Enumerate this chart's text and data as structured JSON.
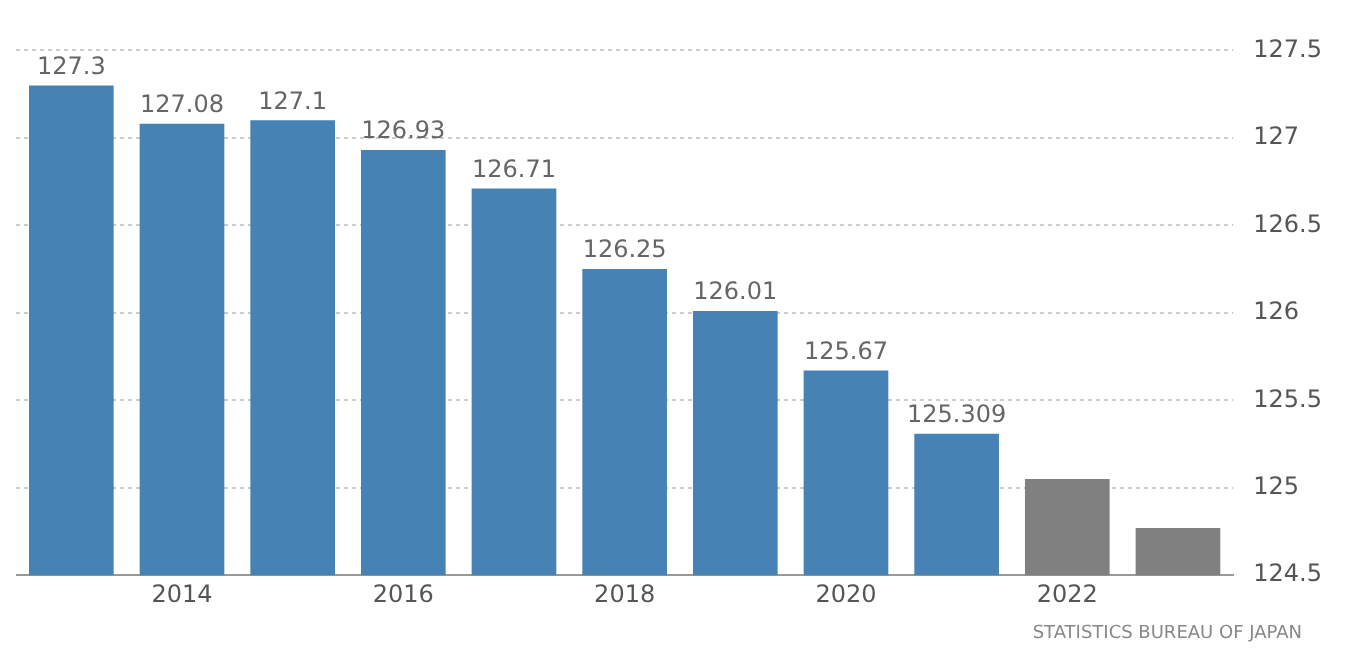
{
  "chart_data": {
    "type": "bar",
    "categories": [
      null,
      "2014",
      null,
      "2016",
      null,
      "2018",
      null,
      "2020",
      null,
      "2022",
      null
    ],
    "values": [
      127.3,
      127.08,
      127.1,
      126.93,
      126.71,
      126.25,
      126.01,
      125.67,
      125.309,
      125.05,
      124.77
    ],
    "colors": [
      "#4682b4",
      "#4682b4",
      "#4682b4",
      "#4682b4",
      "#4682b4",
      "#4682b4",
      "#4682b4",
      "#4682b4",
      "#4682b4",
      "#808080",
      "#808080"
    ],
    "value_labels": [
      "127.3",
      "127.08",
      "127.1",
      "126.93",
      "126.71",
      "126.25",
      "126.01",
      "125.67",
      "125.309",
      null,
      null
    ],
    "ylim": [
      124.5,
      127.5
    ],
    "yticks": [
      124.5,
      125,
      125.5,
      126,
      126.5,
      127,
      127.5
    ],
    "grid": "y",
    "annotations": [
      "STATISTICS BUREAU OF JAPAN"
    ]
  }
}
